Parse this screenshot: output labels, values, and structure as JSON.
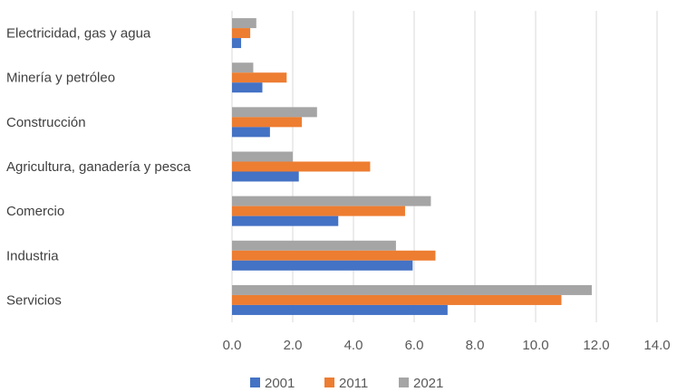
{
  "chart_data": {
    "type": "bar",
    "orientation": "horizontal",
    "categories": [
      "Electricidad, gas y agua",
      "Minería y petróleo",
      "Construcción",
      "Agricultura, ganadería y pesca",
      "Comercio",
      "Industria",
      "Servicios"
    ],
    "series": [
      {
        "name": "2001",
        "color": "#4472C4",
        "values": [
          0.3,
          1.0,
          1.25,
          2.2,
          3.5,
          5.95,
          7.1
        ]
      },
      {
        "name": "2011",
        "color": "#ED7D31",
        "values": [
          0.6,
          1.8,
          2.3,
          4.55,
          5.7,
          6.7,
          10.85
        ]
      },
      {
        "name": "2021",
        "color": "#A5A5A5",
        "values": [
          0.8,
          0.7,
          2.8,
          2.0,
          6.55,
          5.4,
          11.85
        ]
      }
    ],
    "xlim": [
      0,
      14
    ],
    "x_ticks": [
      "0.0",
      "2.0",
      "4.0",
      "6.0",
      "8.0",
      "10.0",
      "12.0",
      "14.0"
    ],
    "grid": "vertical",
    "legend_position": "bottom"
  }
}
